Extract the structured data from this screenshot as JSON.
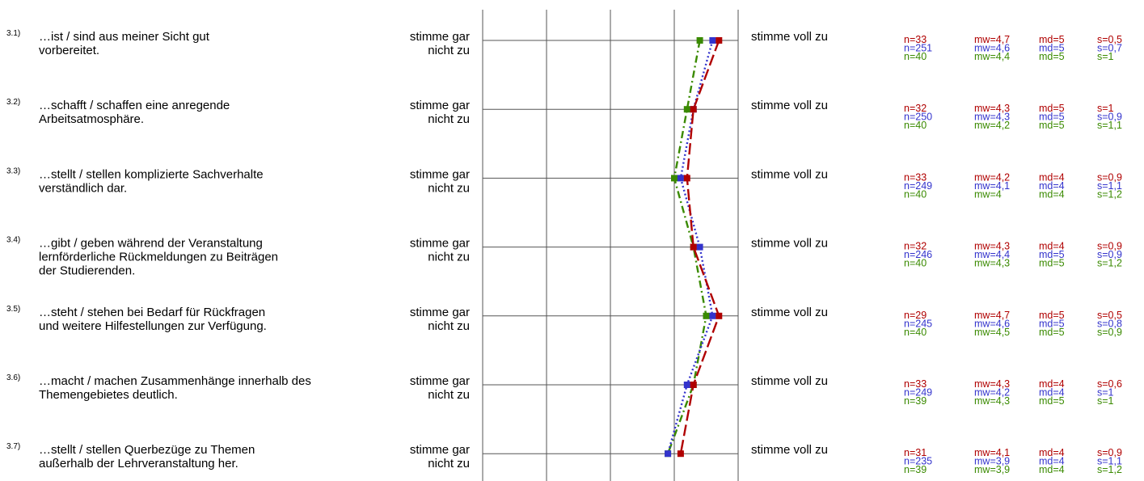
{
  "chart_data": {
    "type": "line",
    "orientation": "vertical-profile",
    "scale": {
      "min": 1,
      "max": 5,
      "left_label": "stimme gar nicht zu",
      "right_label": "stimme voll zu"
    },
    "colors": {
      "red": "#b00000",
      "blue": "#3333cc",
      "green": "#3a8a00"
    },
    "items": [
      {
        "num": "3.1)",
        "text": "…ist / sind aus meiner Sicht gut vorbereitet."
      },
      {
        "num": "3.2)",
        "text": "…schafft / schaffen eine anregende Arbeitsatmosphäre."
      },
      {
        "num": "3.3)",
        "text": "…stellt / stellen komplizierte Sachverhalte verständlich dar."
      },
      {
        "num": "3.4)",
        "text": "…gibt / geben während der Veranstaltung lernförderliche Rückmeldungen zu Beiträgen der Studierenden."
      },
      {
        "num": "3.5)",
        "text": "…steht / stehen bei Bedarf für Rückfragen und weitere Hilfestellungen zur Verfügung."
      },
      {
        "num": "3.6)",
        "text": "…macht / machen Zusammenhänge innerhalb des Themengebietes deutlich."
      },
      {
        "num": "3.7)",
        "text": "…stellt / stellen Querbezüge zu Themen außerhalb der Lehrveranstaltung her."
      }
    ],
    "series": [
      {
        "color": "#b00000",
        "dash": "long-dash",
        "values": [
          4.7,
          4.3,
          4.2,
          4.3,
          4.7,
          4.3,
          4.1
        ],
        "stats": [
          [
            "n=33",
            "mw=4,7",
            "md=5",
            "s=0,5"
          ],
          [
            "n=32",
            "mw=4,3",
            "md=5",
            "s=1"
          ],
          [
            "n=33",
            "mw=4,2",
            "md=4",
            "s=0,9"
          ],
          [
            "n=32",
            "mw=4,3",
            "md=4",
            "s=0,9"
          ],
          [
            "n=29",
            "mw=4,7",
            "md=5",
            "s=0,5"
          ],
          [
            "n=33",
            "mw=4,3",
            "md=4",
            "s=0,6"
          ],
          [
            "n=31",
            "mw=4,1",
            "md=4",
            "s=0,9"
          ]
        ]
      },
      {
        "color": "#3333cc",
        "dash": "dotted",
        "values": [
          4.6,
          4.3,
          4.1,
          4.4,
          4.6,
          4.2,
          3.9
        ],
        "stats": [
          [
            "n=251",
            "mw=4,6",
            "md=5",
            "s=0,7"
          ],
          [
            "n=250",
            "mw=4,3",
            "md=5",
            "s=0,9"
          ],
          [
            "n=249",
            "mw=4,1",
            "md=4",
            "s=1,1"
          ],
          [
            "n=246",
            "mw=4,4",
            "md=5",
            "s=0,9"
          ],
          [
            "n=245",
            "mw=4,6",
            "md=5",
            "s=0,8"
          ],
          [
            "n=249",
            "mw=4,2",
            "md=4",
            "s=1"
          ],
          [
            "n=235",
            "mw=3,9",
            "md=4",
            "s=1,1"
          ]
        ]
      },
      {
        "color": "#3a8a00",
        "dash": "dash-dot",
        "values": [
          4.4,
          4.2,
          4.0,
          4.3,
          4.5,
          4.3,
          3.9
        ],
        "stats": [
          [
            "n=40",
            "mw=4,4",
            "md=5",
            "s=1"
          ],
          [
            "n=40",
            "mw=4,2",
            "md=5",
            "s=1,1"
          ],
          [
            "n=40",
            "mw=4",
            "md=4",
            "s=1,2"
          ],
          [
            "n=40",
            "mw=4,3",
            "md=5",
            "s=1,2"
          ],
          [
            "n=40",
            "mw=4,5",
            "md=5",
            "s=0,9"
          ],
          [
            "n=39",
            "mw=4,3",
            "md=5",
            "s=1"
          ],
          [
            "n=39",
            "mw=3,9",
            "md=4",
            "s=1,2"
          ]
        ]
      }
    ]
  }
}
